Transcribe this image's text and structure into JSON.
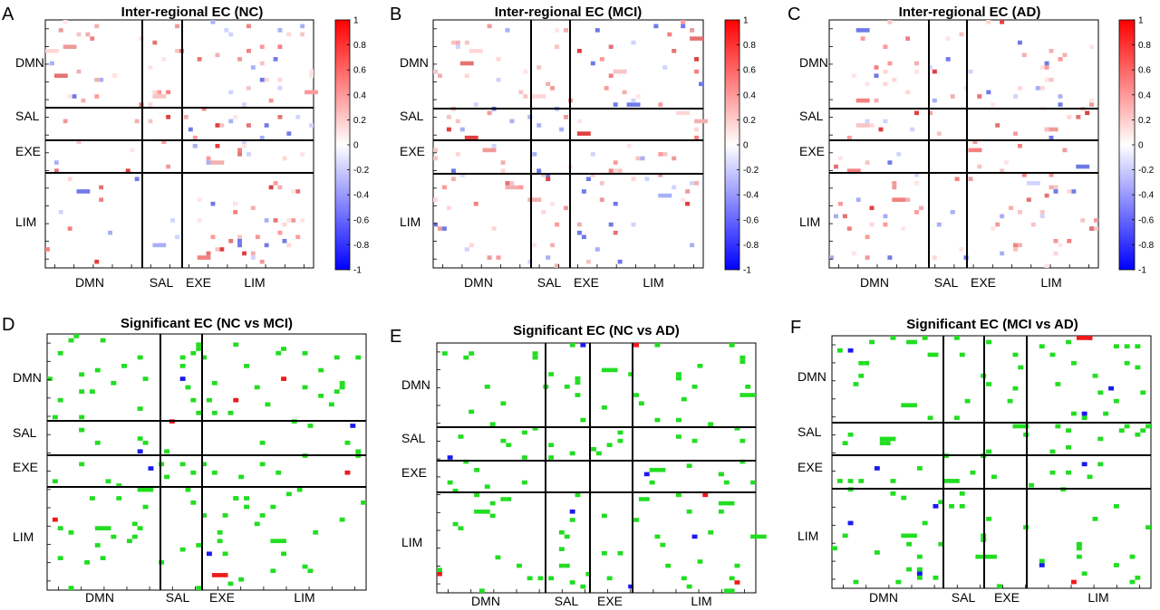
{
  "chart_data": [
    {
      "type": "heatmap",
      "panel": "A",
      "title": "Inter-regional EC (NC)",
      "x_groups": [
        "DMN",
        "SAL",
        "EXE",
        "LIM"
      ],
      "y_groups": [
        "DMN",
        "SAL",
        "EXE",
        "LIM"
      ],
      "colorbar": {
        "range": [
          -1,
          1
        ],
        "ticks": [
          "1",
          "0.8",
          "0.6",
          "0.4",
          "0.2",
          "0",
          "-0.2",
          "-0.4",
          "-0.6",
          "-0.8",
          "-1"
        ]
      }
    },
    {
      "type": "heatmap",
      "panel": "B",
      "title": "Inter-regional EC (MCI)",
      "x_groups": [
        "DMN",
        "SAL",
        "EXE",
        "LIM"
      ],
      "y_groups": [
        "DMN",
        "SAL",
        "EXE",
        "LIM"
      ],
      "colorbar": {
        "range": [
          -1,
          1
        ],
        "ticks": [
          "1",
          "0.8",
          "0.6",
          "0.4",
          "0.2",
          "0",
          "-0.2",
          "-0.4",
          "-0.6",
          "-0.8",
          "-1"
        ]
      }
    },
    {
      "type": "heatmap",
      "panel": "C",
      "title": "Inter-regional EC (AD)",
      "x_groups": [
        "DMN",
        "SAL",
        "EXE",
        "LIM"
      ],
      "y_groups": [
        "DMN",
        "SAL",
        "EXE",
        "LIM"
      ],
      "colorbar": {
        "range": [
          -1,
          1
        ],
        "ticks": [
          "1",
          "0.8",
          "0.6",
          "0.4",
          "0.2",
          "0",
          "-0.2",
          "-0.4",
          "-0.6",
          "-0.8",
          "-1"
        ]
      }
    },
    {
      "type": "heatmap",
      "panel": "D",
      "title": "Significant EC (NC vs MCI)",
      "x_groups": [
        "DMN",
        "SAL",
        "EXE",
        "LIM"
      ],
      "y_groups": [
        "DMN",
        "SAL",
        "EXE",
        "LIM"
      ]
    },
    {
      "type": "heatmap",
      "panel": "E",
      "title": "Significant EC (NC vs AD)",
      "x_groups": [
        "DMN",
        "SAL",
        "EXE",
        "LIM"
      ],
      "y_groups": [
        "DMN",
        "SAL",
        "EXE",
        "LIM"
      ]
    },
    {
      "type": "heatmap",
      "panel": "F",
      "title": "Significant EC (MCI vs AD)",
      "x_groups": [
        "DMN",
        "SAL",
        "EXE",
        "LIM"
      ],
      "y_groups": [
        "DMN",
        "SAL",
        "EXE",
        "LIM"
      ]
    }
  ],
  "colors": {
    "green": "#22dd22",
    "blue": "#1a1aee",
    "red": "#ee1a1a",
    "cb_top": "#ff0000",
    "cb_mid": "#ffffff",
    "cb_bottom": "#0000ff"
  }
}
